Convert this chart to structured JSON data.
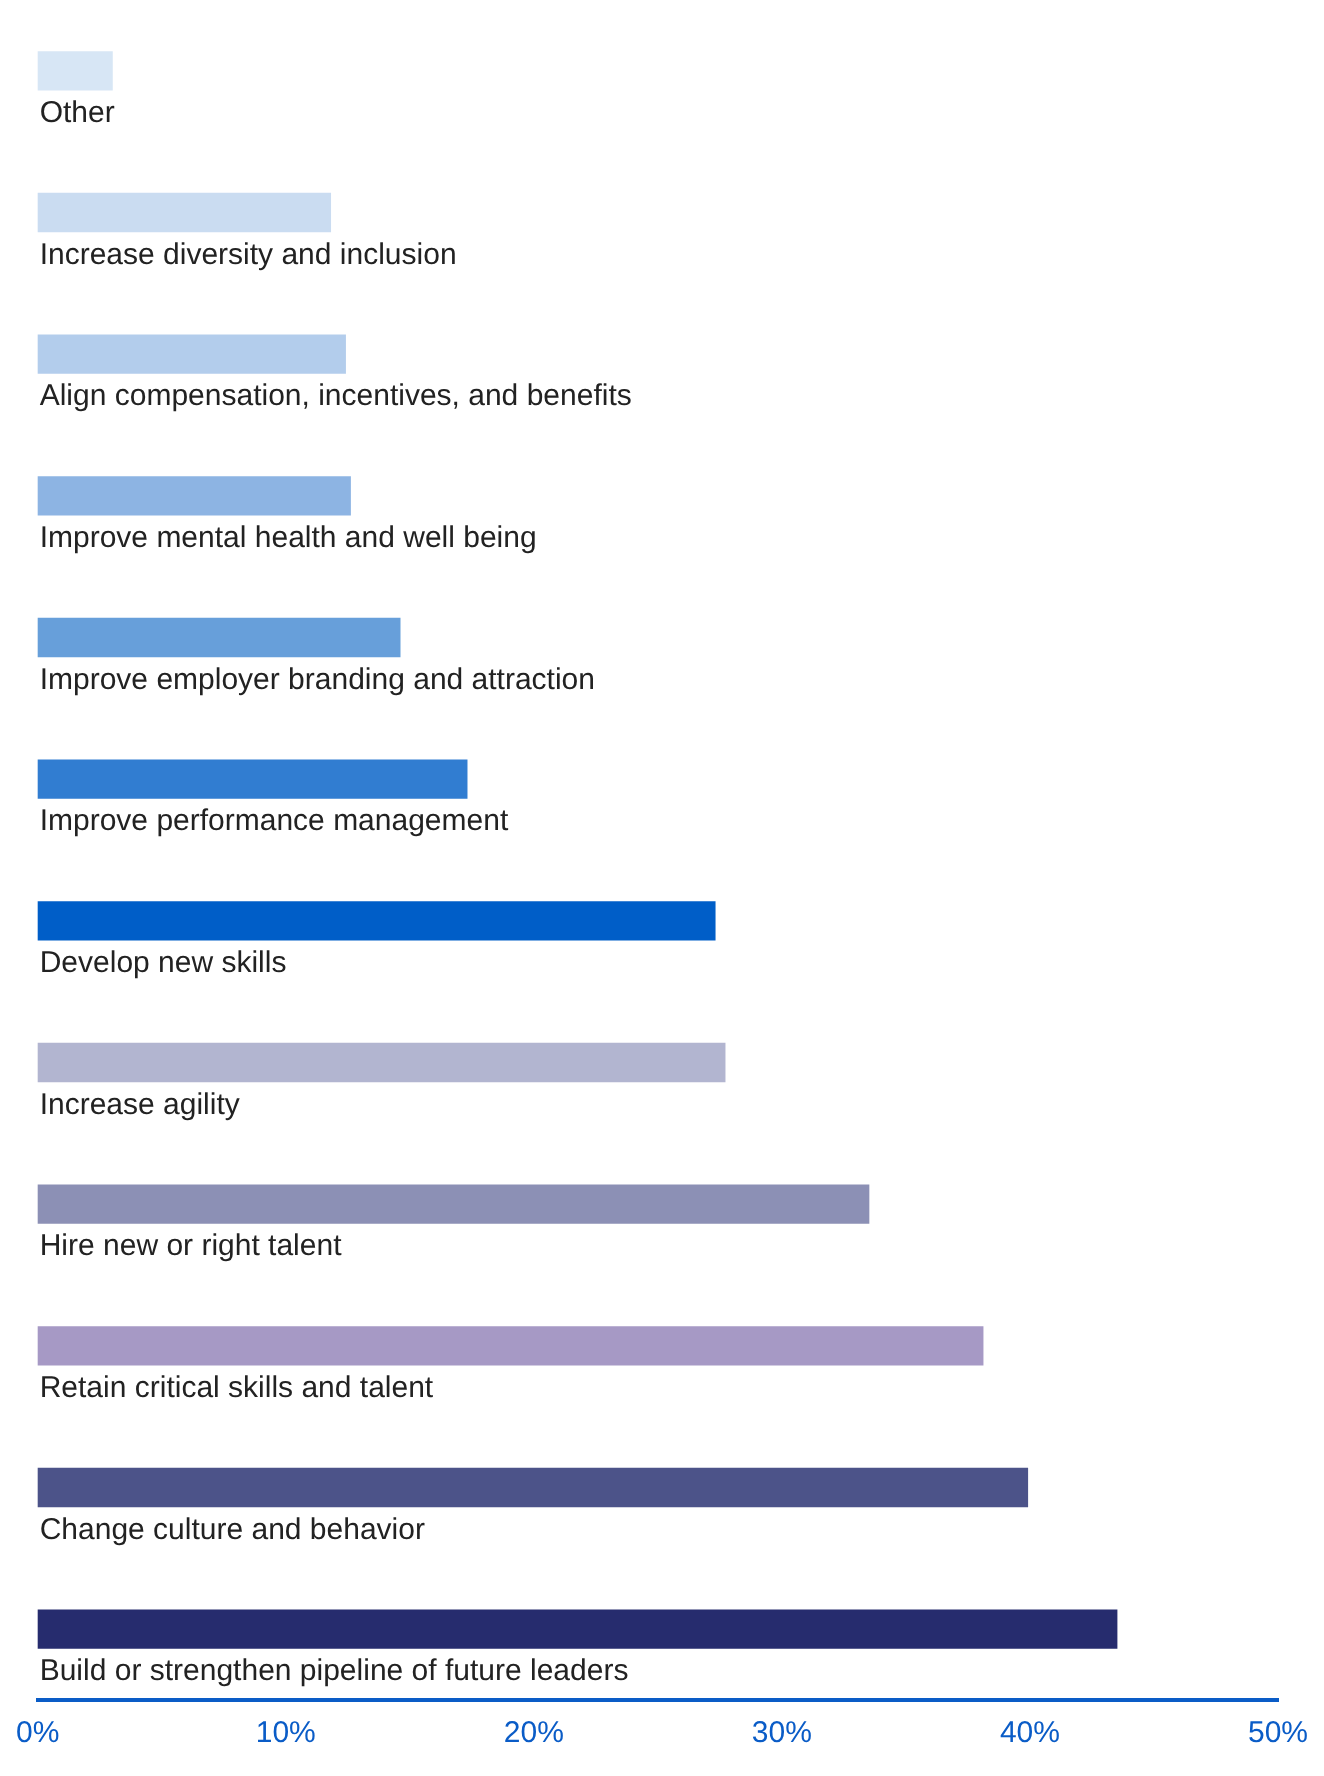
{
  "chart_data": {
    "type": "bar",
    "orientation": "horizontal",
    "categories": [
      "Other",
      "Increase diversity and inclusion",
      "Align compensation, incentives, and benefits",
      "Improve mental health and well being",
      "Improve employer branding and attraction",
      "Improve performance management",
      "Develop new skills",
      "Increase agility",
      "Hire new or right talent",
      "Retain critical skills and talent",
      "Change culture and behavior",
      "Build or strengthen pipeline of future leaders"
    ],
    "values": [
      3,
      11.8,
      12.4,
      12.6,
      14.6,
      17.3,
      27.3,
      27.7,
      33.5,
      38.1,
      39.9,
      43.5
    ],
    "colors": [
      "#d7e6f5",
      "#cadcf1",
      "#b3cdec",
      "#8db4e3",
      "#679fda",
      "#317dd1",
      "#005ec8",
      "#b2b5d0",
      "#8c90b5",
      "#a699c5",
      "#4c5389",
      "#262c6e"
    ],
    "xlim": [
      0,
      50
    ],
    "xticks": [
      {
        "value": 0,
        "label": "0%"
      },
      {
        "value": 10,
        "label": "10%"
      },
      {
        "value": 20,
        "label": "20%"
      },
      {
        "value": 30,
        "label": "30%"
      },
      {
        "value": 40,
        "label": "40%"
      },
      {
        "value": 50,
        "label": "50%"
      }
    ],
    "grid": false,
    "legend": false
  }
}
